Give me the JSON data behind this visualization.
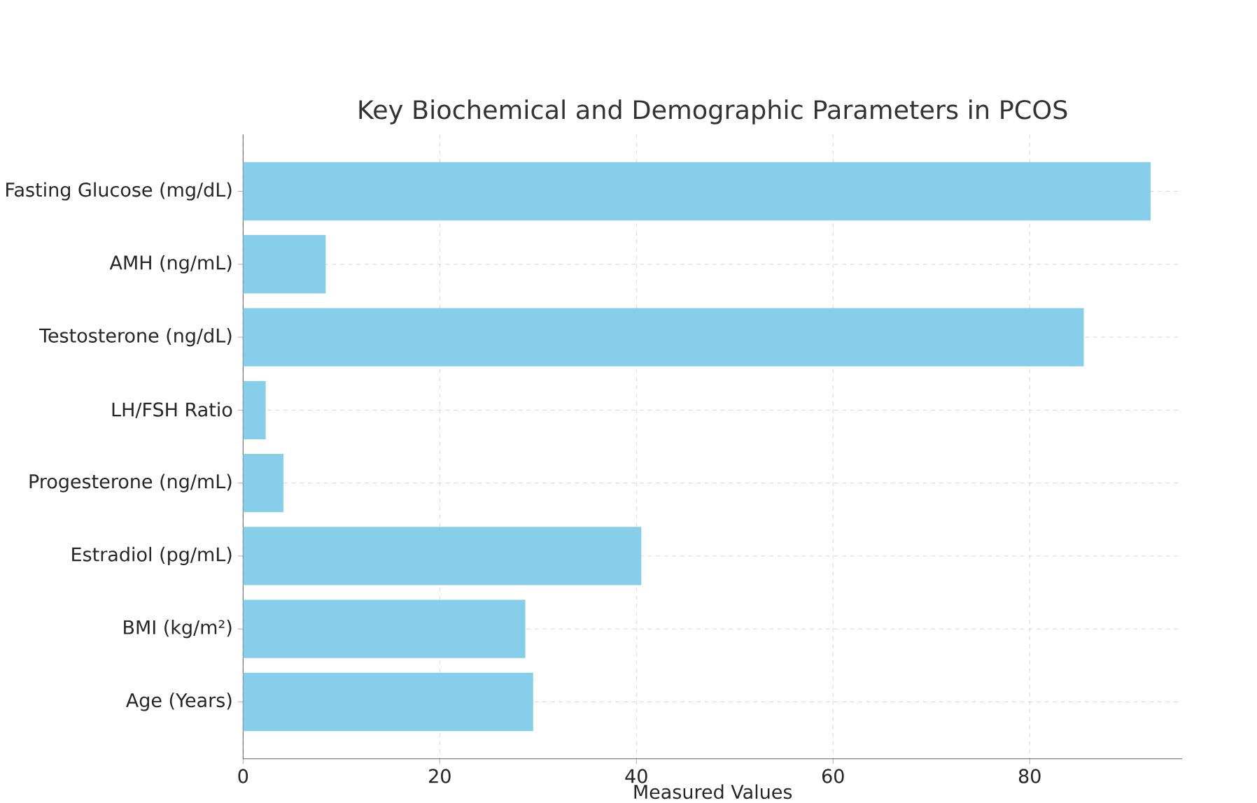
{
  "chart_data": {
    "type": "bar",
    "orientation": "horizontal",
    "title": "Key Biochemical and Demographic Parameters in PCOS",
    "xlabel": "Measured Values",
    "categories": [
      "Fasting Glucose (mg/dL)",
      "AMH (ng/mL)",
      "Testosterone (ng/dL)",
      "LH/FSH Ratio",
      "Progesterone (ng/mL)",
      "Estradiol (pg/mL)",
      "BMI (kg/m²)",
      "Age (Years)"
    ],
    "values": [
      92.3,
      8.4,
      85.5,
      2.3,
      4.1,
      40.5,
      28.7,
      29.5
    ],
    "color": "#87ceeb",
    "xlim": [
      0,
      95.5
    ],
    "xticks": [
      0,
      20,
      40,
      60,
      80
    ],
    "grid": true
  }
}
